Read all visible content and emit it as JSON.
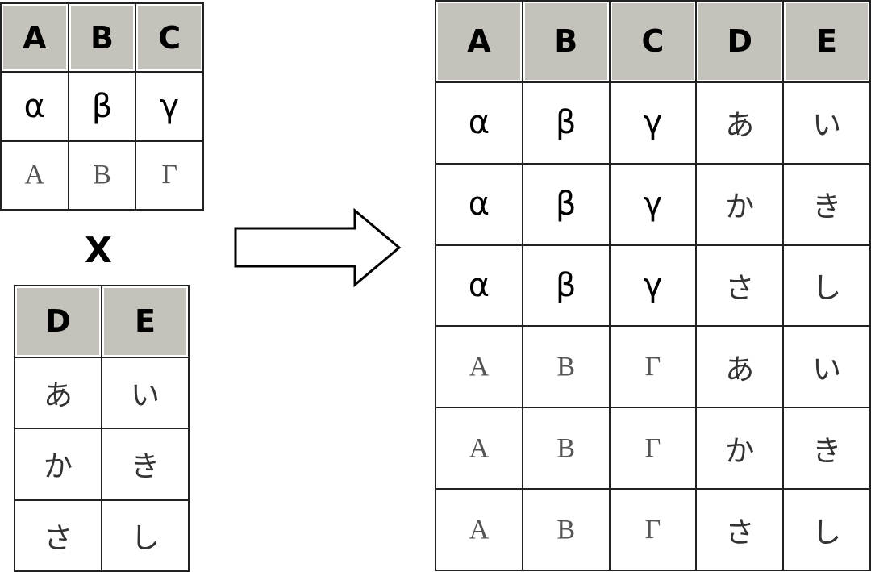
{
  "operator": "X",
  "table1": {
    "headers": [
      "A",
      "B",
      "C"
    ],
    "rows": [
      [
        "α",
        "β",
        "γ"
      ],
      [
        "Α",
        "Β",
        "Γ"
      ]
    ],
    "row_styles": [
      "lower",
      "upper"
    ]
  },
  "table2": {
    "headers": [
      "D",
      "E"
    ],
    "rows": [
      [
        "あ",
        "い"
      ],
      [
        "か",
        "き"
      ],
      [
        "さ",
        "し"
      ]
    ],
    "row_styles": [
      "kana",
      "kana",
      "kana"
    ]
  },
  "result": {
    "headers": [
      "A",
      "B",
      "C",
      "D",
      "E"
    ],
    "rows": [
      [
        "α",
        "β",
        "γ",
        "あ",
        "い"
      ],
      [
        "α",
        "β",
        "γ",
        "か",
        "き"
      ],
      [
        "α",
        "β",
        "γ",
        "さ",
        "し"
      ],
      [
        "Α",
        "Β",
        "Γ",
        "あ",
        "い"
      ],
      [
        "Α",
        "Β",
        "Γ",
        "か",
        "き"
      ],
      [
        "Α",
        "Β",
        "Γ",
        "さ",
        "し"
      ]
    ]
  },
  "colors": {
    "header_bg": "#c5c2bb",
    "border": "#222222"
  }
}
